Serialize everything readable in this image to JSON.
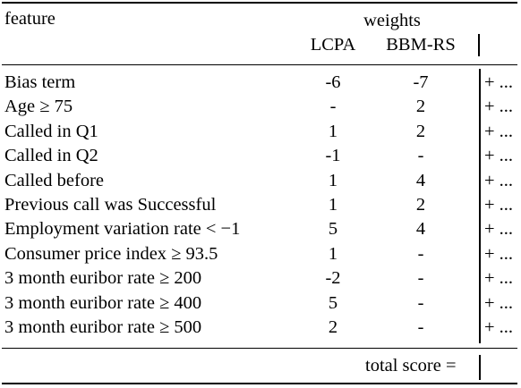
{
  "table": {
    "header": {
      "feature": "feature",
      "weights": "weights",
      "lcpa": "LCPA",
      "bbmrs": "BBM-RS"
    },
    "rows": [
      {
        "feature": "Bias term",
        "lcpa": "-6",
        "bbmrs": "-7",
        "score": "+ ..."
      },
      {
        "feature": "Age ≥ 75",
        "lcpa": "-",
        "bbmrs": "2",
        "score": "+ ..."
      },
      {
        "feature": "Called in Q1",
        "lcpa": "1",
        "bbmrs": "2",
        "score": "+ ..."
      },
      {
        "feature": "Called in Q2",
        "lcpa": "-1",
        "bbmrs": "-",
        "score": "+ ..."
      },
      {
        "feature": "Called before",
        "lcpa": "1",
        "bbmrs": "4",
        "score": "+ ..."
      },
      {
        "feature": "Previous call was Successful",
        "lcpa": "1",
        "bbmrs": "2",
        "score": "+ ..."
      },
      {
        "feature": "Employment variation rate < −1",
        "lcpa": "5",
        "bbmrs": "4",
        "score": "+ ..."
      },
      {
        "feature": "Consumer price index ≥ 93.5",
        "lcpa": "1",
        "bbmrs": "-",
        "score": "+ ..."
      },
      {
        "feature": "3 month euribor rate ≥ 200",
        "lcpa": "-2",
        "bbmrs": "-",
        "score": "+ ..."
      },
      {
        "feature": "3 month euribor rate ≥ 400",
        "lcpa": "5",
        "bbmrs": "-",
        "score": "+ ..."
      },
      {
        "feature": "3 month euribor rate ≥ 500",
        "lcpa": "2",
        "bbmrs": "-",
        "score": "+ ..."
      }
    ],
    "footer": {
      "total_score": "total score ="
    }
  }
}
